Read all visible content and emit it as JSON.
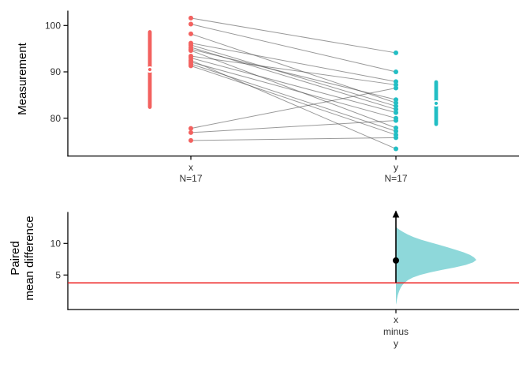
{
  "figure": {
    "background": "#ffffff",
    "description": "Paired estimation plot: slopegraph of paired measurements (x vs y) with group mean and CI bars, plus paired mean difference half-violin bootstrap distribution panel"
  },
  "colors": {
    "group_x": "#f3615f",
    "group_y": "#22bec4",
    "violin_fill": "#8ed8da",
    "slope_line": "rgba(70,70,70,0.55)",
    "reference_line": "#ee2222",
    "ci_line": "#000000",
    "axis": "#000000",
    "tick_text": "#303030",
    "title_text": "#000000"
  },
  "chart_data": [
    {
      "type": "slopegraph-paired",
      "title": "",
      "ylabel": "Measurement",
      "xlabel": "",
      "ylim": [
        72,
        103
      ],
      "yticks": [
        100,
        90,
        80
      ],
      "grid": false,
      "legend": "none",
      "groups": [
        {
          "label": "x",
          "n_label": "N=17",
          "n": 17,
          "color": "#f3615f",
          "mean": 90.5,
          "ci": [
            82.0,
            99.0
          ]
        },
        {
          "label": "y",
          "n_label": "N=17",
          "n": 17,
          "color": "#22bec4",
          "mean": 83.2,
          "ci": [
            78.3,
            88.2
          ]
        }
      ],
      "pairs": [
        [
          101.6,
          94.1
        ],
        [
          100.3,
          90.0
        ],
        [
          98.2,
          83.3
        ],
        [
          96.2,
          87.9
        ],
        [
          95.8,
          82.6
        ],
        [
          95.3,
          81.9
        ],
        [
          94.9,
          84.0
        ],
        [
          94.6,
          77.9
        ],
        [
          93.4,
          87.2
        ],
        [
          93.0,
          81.2
        ],
        [
          92.5,
          73.4
        ],
        [
          92.1,
          80.0
        ],
        [
          91.7,
          77.2
        ],
        [
          91.3,
          76.4
        ],
        [
          77.8,
          86.5
        ],
        [
          76.9,
          79.5
        ],
        [
          75.2,
          75.8
        ]
      ]
    },
    {
      "type": "half-violin-difference",
      "title": "",
      "ylabel_lines": [
        "Paired",
        "mean difference"
      ],
      "ylim": [
        -0.5,
        15
      ],
      "yticks": [
        10,
        5
      ],
      "xtick_lines": [
        "x",
        "minus",
        "y"
      ],
      "grid": false,
      "mean_difference": 7.3,
      "ci_lower": 3.8,
      "ci_upper_offscale": true,
      "reference_line": 3.75,
      "violin_profile": [
        [
          12.6,
          0.0
        ],
        [
          12.2,
          0.04
        ],
        [
          11.8,
          0.09
        ],
        [
          11.4,
          0.15
        ],
        [
          11.0,
          0.22
        ],
        [
          10.6,
          0.31
        ],
        [
          10.2,
          0.42
        ],
        [
          9.8,
          0.53
        ],
        [
          9.4,
          0.64
        ],
        [
          9.0,
          0.74
        ],
        [
          8.6,
          0.84
        ],
        [
          8.2,
          0.92
        ],
        [
          7.8,
          0.97
        ],
        [
          7.4,
          1.0
        ],
        [
          7.0,
          0.96
        ],
        [
          6.6,
          0.87
        ],
        [
          6.2,
          0.73
        ],
        [
          5.8,
          0.57
        ],
        [
          5.4,
          0.42
        ],
        [
          5.0,
          0.3
        ],
        [
          4.6,
          0.21
        ],
        [
          4.2,
          0.15
        ],
        [
          3.8,
          0.11
        ],
        [
          3.4,
          0.08
        ],
        [
          3.0,
          0.06
        ],
        [
          2.6,
          0.045
        ],
        [
          2.2,
          0.033
        ],
        [
          1.8,
          0.024
        ],
        [
          1.4,
          0.017
        ],
        [
          1.0,
          0.011
        ],
        [
          0.6,
          0.006
        ],
        [
          0.3,
          0.0
        ]
      ]
    }
  ]
}
